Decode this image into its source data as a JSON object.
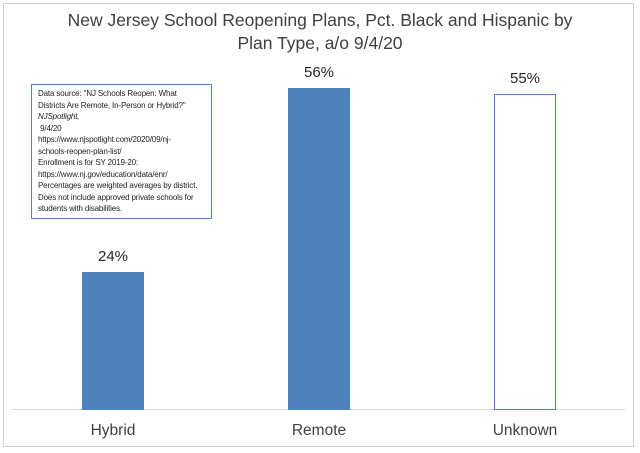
{
  "title": {
    "lines": [
      "New Jersey School Reopening Plans, Pct. Black and Hispanic by",
      "Plan Type, a/o 9/4/20"
    ]
  },
  "annotation": {
    "lines": [
      {
        "text": "Data source: \"NJ Schools Reopen: What",
        "italic": false
      },
      {
        "text": "Districts Are Remote, In-Person or Hybrid?\"",
        "italic": false
      },
      {
        "text": "NJSpotlight,",
        "italic": true
      },
      {
        "text": " 9/4/20",
        "italic": false
      },
      {
        "text": "https://www.njspotlight.com/2020/09/nj-",
        "italic": false
      },
      {
        "text": "schools-reopen-plan-list/",
        "italic": false
      },
      {
        "text": "Enrollment is for SY 2019-20:",
        "italic": false
      },
      {
        "text": "https://www.nj.gov/education/data/enr/",
        "italic": false
      },
      {
        "text": "Percentages are weighted averages by district.",
        "italic": false
      },
      {
        "text": "Does not include approved private schools for",
        "italic": false
      },
      {
        "text": "students with disabilities.",
        "italic": false
      }
    ]
  },
  "chart_data": {
    "type": "bar",
    "title": "New Jersey School Reopening Plans, Pct. Black and Hispanic by Plan Type, a/o 9/4/20",
    "categories": [
      "Hybrid",
      "Remote",
      "Unknown"
    ],
    "values": [
      24,
      56,
      55
    ],
    "data_labels": [
      "24%",
      "56%",
      "55%"
    ],
    "xlabel": "",
    "ylabel": "",
    "ylim": [
      0,
      60
    ],
    "grid": false,
    "legend": "none",
    "bar_styles": [
      {
        "fill": "#4F81BD",
        "border": "none"
      },
      {
        "fill": "#4F81BD",
        "border": "none"
      },
      {
        "fill": "#FFFFFF",
        "border": "#4F81BD"
      }
    ],
    "colors": {
      "bar_blue": "#4F81BD",
      "axis_line": "#D9D9D9",
      "title_text": "#3F3F3F",
      "label_text": "#404040",
      "annotation_border": "#4F81BD",
      "frame_border": "#CFCFCF"
    }
  }
}
